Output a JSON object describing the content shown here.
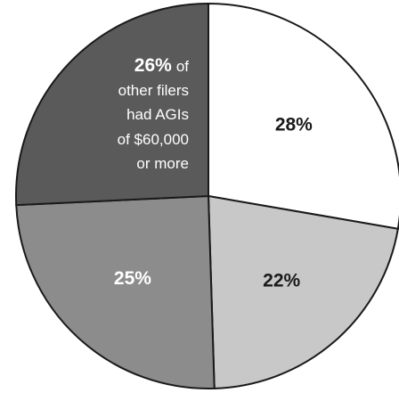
{
  "chart_data": {
    "type": "pie",
    "slices": [
      {
        "label": "28%",
        "value": 28,
        "color": "#ffffff"
      },
      {
        "label": "22%",
        "value": 22,
        "color": "#c8c8c8"
      },
      {
        "label": "25%",
        "value": 25,
        "color": "#8c8c8c"
      },
      {
        "label": "26%",
        "value": 26,
        "color": "#5a5a5a"
      }
    ],
    "annotation": {
      "value": "26%",
      "lines": [
        "of",
        "other filers",
        "had AGIs",
        "of $60,000",
        "or more"
      ]
    },
    "edge_color": "#1a1a1a"
  }
}
